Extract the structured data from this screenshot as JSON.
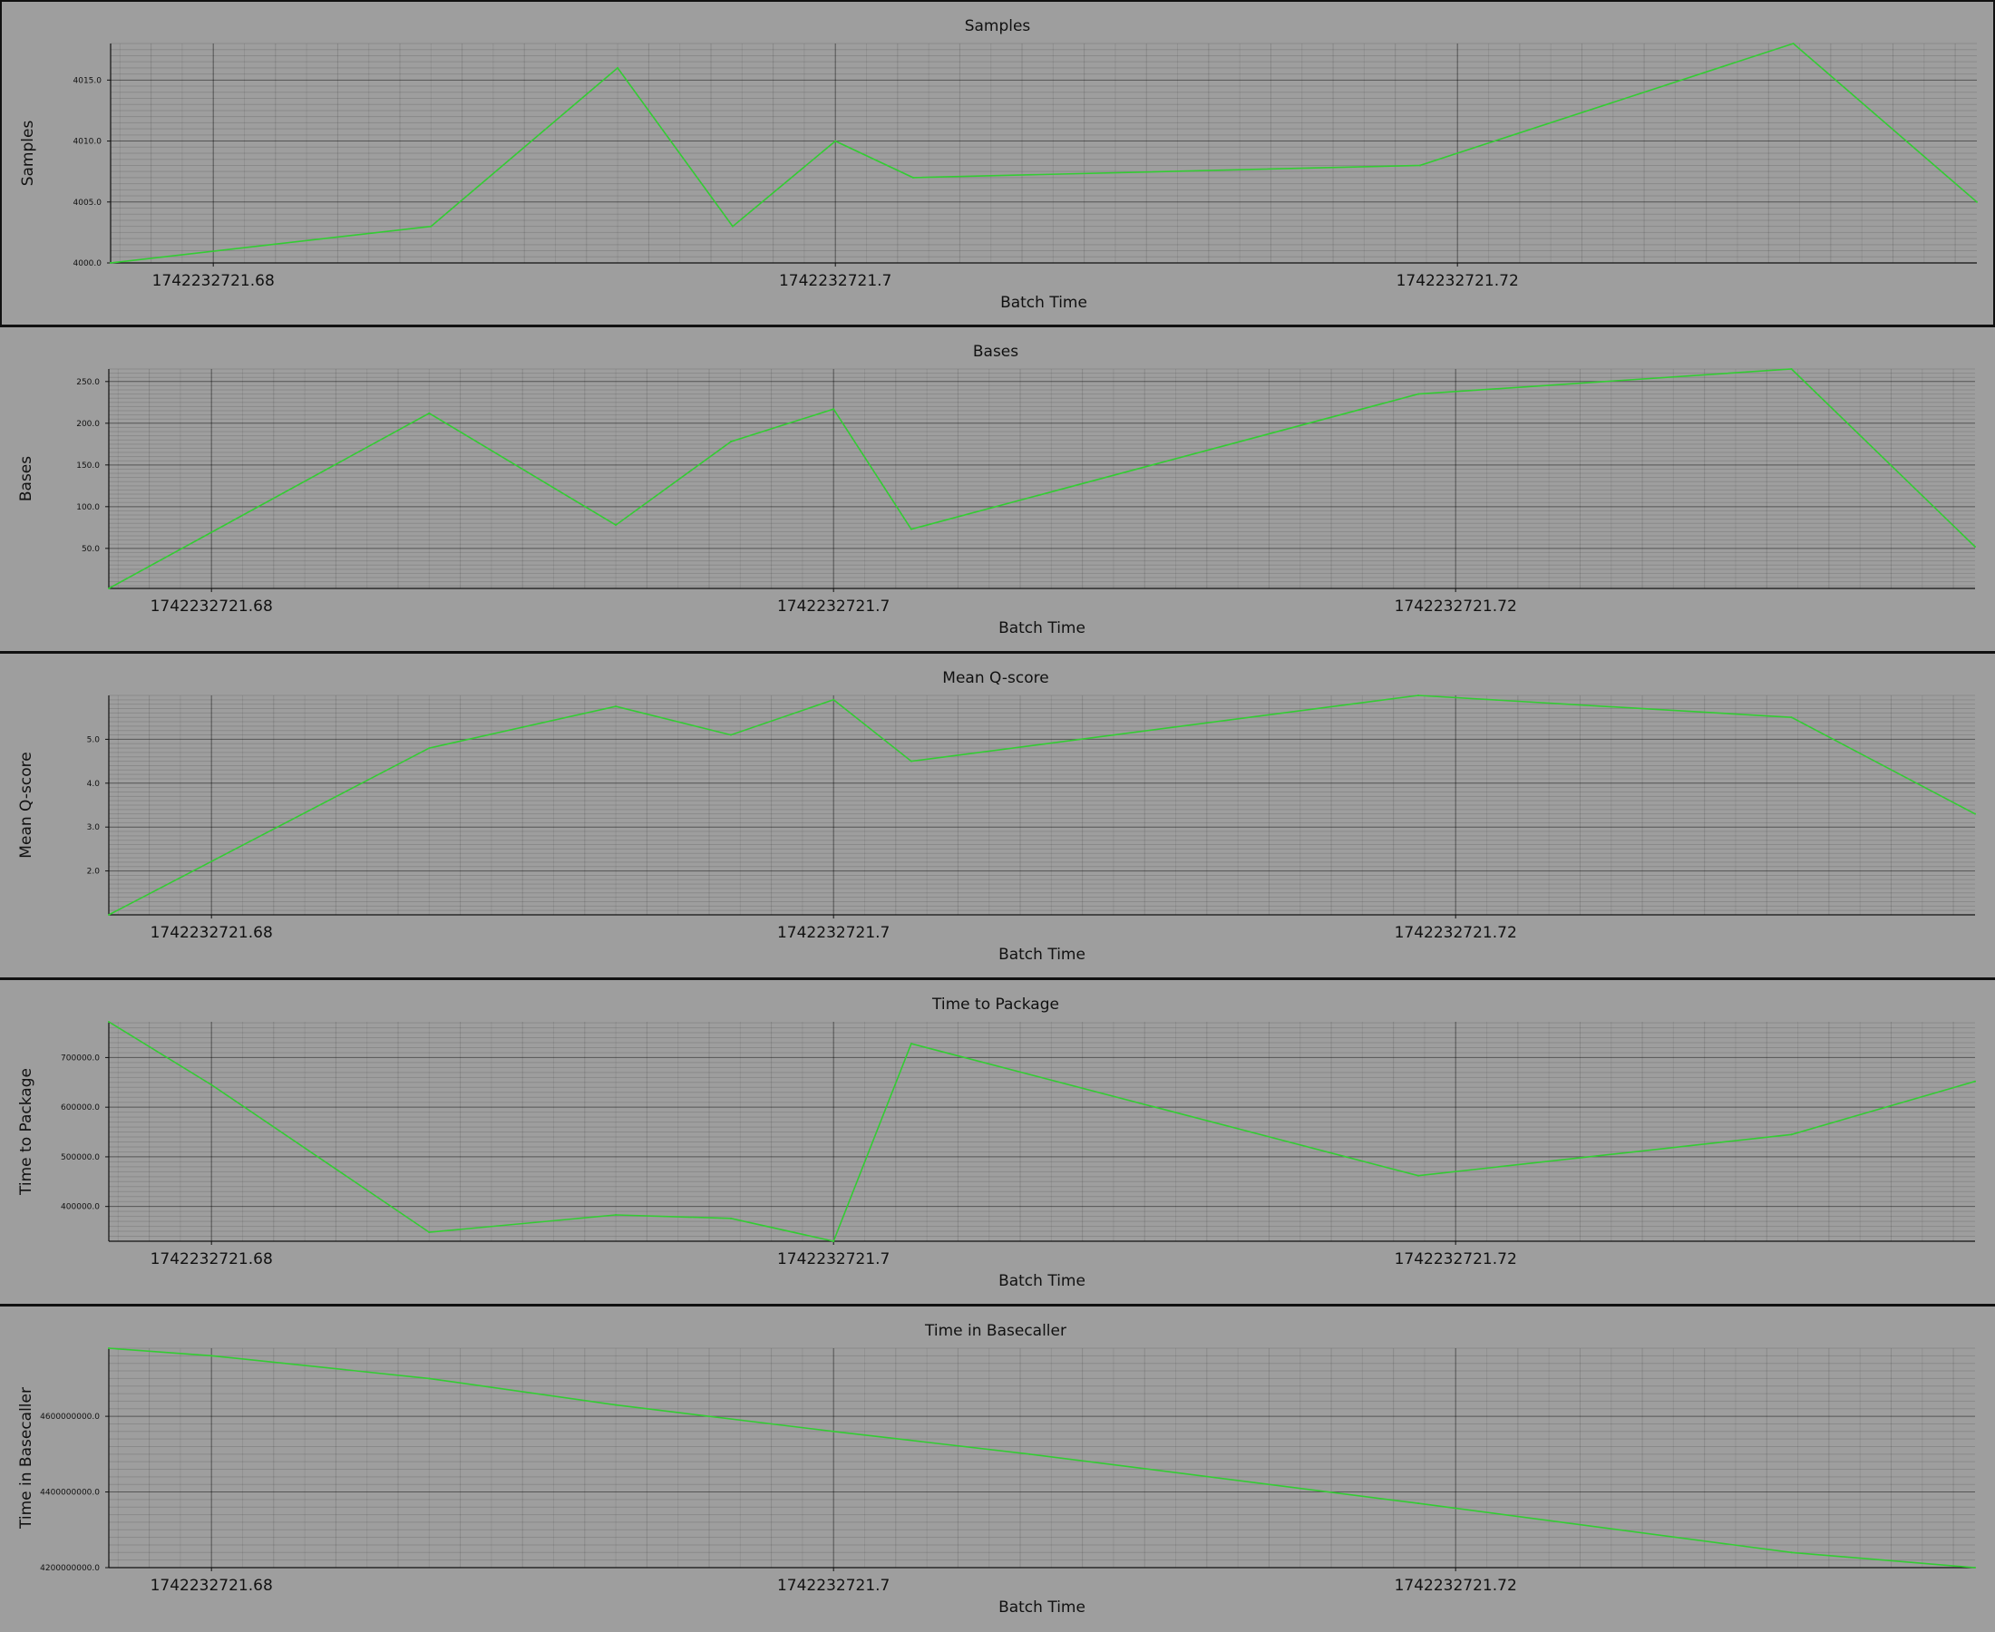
{
  "x_ticks": [
    "1742232721.68",
    "1742232721.7",
    "1742232721.72"
  ],
  "chart_data": [
    {
      "type": "line",
      "title": "Samples",
      "xlabel": "Batch Time",
      "ylabel": "Samples",
      "line_color": "#33cc33",
      "grid": true,
      "x": [
        1742232721.6767,
        1742232721.687,
        1742232721.693,
        1742232721.6967,
        1742232721.7,
        1742232721.7025,
        1742232721.7188,
        1742232721.7308,
        1742232721.7367
      ],
      "values": [
        4000.0,
        4003.0,
        4016.0,
        4003.0,
        4010.0,
        4007.0,
        4008.0,
        4018.0,
        4005.0
      ],
      "ylim": [
        4000.0,
        4018.0
      ],
      "y_ticks": [
        "4000.0",
        "4005.0",
        "4010.0",
        "4015.0"
      ]
    },
    {
      "type": "line",
      "title": "Bases",
      "xlabel": "Batch Time",
      "ylabel": "Bases",
      "line_color": "#33cc33",
      "grid": true,
      "x": [
        1742232721.6767,
        1742232721.687,
        1742232721.693,
        1742232721.6967,
        1742232721.7,
        1742232721.7025,
        1742232721.7188,
        1742232721.7308,
        1742232721.7367
      ],
      "values": [
        2.0,
        212.0,
        78.0,
        178.0,
        217.0,
        73.0,
        235.0,
        265.0,
        52.0
      ],
      "ylim": [
        2.0,
        265.0
      ],
      "y_ticks": [
        "50.0",
        "100.0",
        "150.0",
        "200.0",
        "250.0"
      ]
    },
    {
      "type": "line",
      "title": "Mean Q-score",
      "xlabel": "Batch Time",
      "ylabel": "Mean Q-score",
      "line_color": "#33cc33",
      "grid": true,
      "x": [
        1742232721.6767,
        1742232721.687,
        1742232721.693,
        1742232721.6967,
        1742232721.7,
        1742232721.7025,
        1742232721.7188,
        1742232721.7308,
        1742232721.7367
      ],
      "values": [
        1.0,
        4.8,
        5.75,
        5.1,
        5.9,
        4.5,
        6.0,
        5.5,
        3.3
      ],
      "ylim": [
        1.0,
        6.0
      ],
      "y_ticks": [
        "2.0",
        "3.0",
        "4.0",
        "5.0"
      ]
    },
    {
      "type": "line",
      "title": "Time to Package",
      "xlabel": "Batch Time",
      "ylabel": "Time to Package",
      "line_color": "#33cc33",
      "grid": true,
      "x": [
        1742232721.6767,
        1742232721.68,
        1742232721.687,
        1742232721.693,
        1742232721.6967,
        1742232721.7,
        1742232721.7025,
        1742232721.7188,
        1742232721.7308,
        1742232721.7367
      ],
      "values": [
        772000.0,
        645000.0,
        348000.0,
        383000.0,
        376000.0,
        330000.0,
        728000.0,
        462000.0,
        545000.0,
        652000.0
      ],
      "ylim": [
        330000.0,
        772000.0
      ],
      "y_ticks": [
        "400000.0",
        "500000.0",
        "600000.0",
        "700000.0"
      ]
    },
    {
      "type": "line",
      "title": "Time in Basecaller",
      "xlabel": "Batch Time",
      "ylabel": "Time in Basecaller",
      "line_color": "#33cc33",
      "grid": true,
      "x": [
        1742232721.6767,
        1742232721.68,
        1742232721.687,
        1742232721.693,
        1742232721.7,
        1742232721.7063,
        1742232721.7188,
        1742232721.7308,
        1742232721.7367
      ],
      "values": [
        4780000000.0,
        4760000000.0,
        4700000000.0,
        4630000000.0,
        4560000000.0,
        4500000000.0,
        4370000000.0,
        4240000000.0,
        4200000000.0
      ],
      "ylim": [
        4200000000.0,
        4780000000.0
      ],
      "y_ticks": [
        "4200000000.0",
        "4400000000.0",
        "4600000000.0"
      ]
    }
  ]
}
